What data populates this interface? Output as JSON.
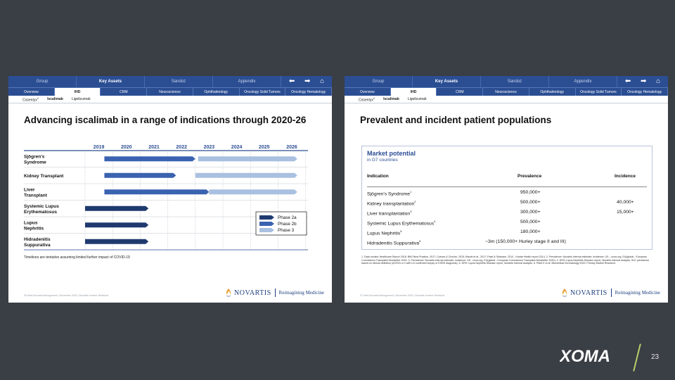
{
  "left_slide": {
    "nav_primary": [
      "Group",
      "Key Assets",
      "Sandoz",
      "Appendix"
    ],
    "nav_primary_active": 1,
    "nav_secondary": [
      "Overview",
      "IHD",
      "CRM",
      "Neuroscience",
      "Ophthalmology",
      "Oncology Solid Tumors",
      "Oncology Hematology"
    ],
    "nav_secondary_active": 1,
    "nav_tertiary": [
      {
        "label": "Cosentyx",
        "sup": "®",
        "active": false
      },
      {
        "label": "Iscalimab",
        "sup": "",
        "active": true
      },
      {
        "label": "Ligelizumab",
        "sup": "",
        "active": false
      }
    ],
    "title": "Advancing iscalimab in a range of indications through 2020-26",
    "years": [
      "2019",
      "2020",
      "2021",
      "2022",
      "2023",
      "2024",
      "2025",
      "2026"
    ],
    "indications": [
      {
        "name": [
          "Sjögren's",
          "Syndrome"
        ],
        "bars": [
          {
            "phase": "Phase 2b",
            "start": 2019.7,
            "end": 2023.0
          },
          {
            "phase": "Phase 3",
            "start": 2023.1,
            "end": 2026.7
          }
        ]
      },
      {
        "name": [
          "Kidney Transplant"
        ],
        "bars": [
          {
            "phase": "Phase 2b",
            "start": 2019.7,
            "end": 2022.3
          },
          {
            "phase": "Phase 3",
            "start": 2023.0,
            "end": 2026.7
          }
        ]
      },
      {
        "name": [
          "Liver",
          "Transplant"
        ],
        "bars": [
          {
            "phase": "Phase 2b",
            "start": 2019.7,
            "end": 2023.5
          },
          {
            "phase": "Phase 3",
            "start": 2023.5,
            "end": 2026.7
          }
        ]
      },
      {
        "name": [
          "Systemic Lupus",
          "Erythematosus"
        ],
        "bars": [
          {
            "phase": "Phase 2a",
            "start": 2019.0,
            "end": 2021.3
          }
        ]
      },
      {
        "name": [
          "Lupus",
          "Nephritis"
        ],
        "bars": [
          {
            "phase": "Phase 2a",
            "start": 2019.0,
            "end": 2021.3
          }
        ]
      },
      {
        "name": [
          "Hidradenitis",
          "Suppurativa"
        ],
        "bars": [
          {
            "phase": "Phase 2a",
            "start": 2019.0,
            "end": 2021.3
          }
        ]
      }
    ],
    "legend": [
      {
        "label": "Phase 2a",
        "color": "#1f3a6e"
      },
      {
        "label": "Phase 2b",
        "color": "#3a62b0"
      },
      {
        "label": "Phase 3",
        "color": "#a9c0e0"
      }
    ],
    "note": "Timelines are tentative assuming limited further impact of COVID-19",
    "footer": "36   Meet Novartis Management  |  November 2020  |  Novartis Investor Relations",
    "logo_text": "NOVARTIS",
    "logo_tagline": "Reimagining Medicine"
  },
  "right_slide": {
    "nav_primary": [
      "Group",
      "Key Assets",
      "Sandoz",
      "Appendix"
    ],
    "nav_primary_active": 1,
    "nav_secondary": [
      "Overview",
      "IHD",
      "CRM",
      "Neuroscience",
      "Ophthalmology",
      "Oncology Solid Tumors",
      "Oncology Hematology"
    ],
    "nav_secondary_active": 1,
    "nav_tertiary": [
      {
        "label": "Cosentyx",
        "sup": "®",
        "active": false
      },
      {
        "label": "Iscalimab",
        "sup": "",
        "active": true
      },
      {
        "label": "Ligelizumab",
        "sup": "",
        "active": false
      }
    ],
    "title": "Prevalent and incident patient populations",
    "market_title": "Market potential",
    "market_subtitle": "in G7 countries",
    "columns": [
      "Indication",
      "Prevalence",
      "Incidence"
    ],
    "rows": [
      {
        "indication": "Sjögren's Syndrome",
        "sup": "1",
        "prevalence": "950,000+",
        "incidence": ""
      },
      {
        "indication": "Kidney transplantation",
        "sup": "2",
        "prevalence": "500,000+",
        "incidence": "40,000+"
      },
      {
        "indication": "Liver transplantation",
        "sup": "3",
        "prevalence": "300,000+",
        "incidence": "15,000+"
      },
      {
        "indication": "Systemic Lupus Erythematosus",
        "sup": "4",
        "prevalence": "500,000+",
        "incidence": ""
      },
      {
        "indication": "Lupus Nephritis",
        "sup": "5",
        "prevalence": "180,000+",
        "incidence": ""
      },
      {
        "indication": "Hidradenitis Suppurativa",
        "sup": "6",
        "prevalence": "~3m (150,000+ Hurley stage II and III)",
        "incidence": ""
      }
    ],
    "references": "1. Data monitor Healthcare Report 2018; BMJ Best Practice, 2017; Colmes & Choche, 2015; Maciel et al., 2017; Patel & Shahane, 2014 - Kantar Health report 2014.   2. Prevalence: Novartis internal estimate; incidence: US – unos.org, EU(global - European Commission Transplant Newsletter 2020.   3. Prevalence: Novartis internal estimate; incidence: US - unos.org, EU(global - European Commission Transplant Newsletter 2020).   4. DRG Lupus Nephritis Disease report, Novartis internal analysis; SLE prevalence based on clinical definition (ACR04 or 2 with LN confirmed biopsy or ESRD diagnosis).   5. DRG Lupus Nephritis Disease report, Novartis internal analysis.   6. Pfaet K et al. Biomedical Dermatology 2020; Primary Market Research.",
    "footer": "37   Meet Novartis Management  |  November 2020  |  Novartis Investor Relations",
    "logo_text": "NOVARTIS",
    "logo_tagline": "Reimagining Medicine"
  },
  "brand": {
    "name": "XOMA",
    "accent_color": "#b5d06b"
  },
  "page_number": "23"
}
